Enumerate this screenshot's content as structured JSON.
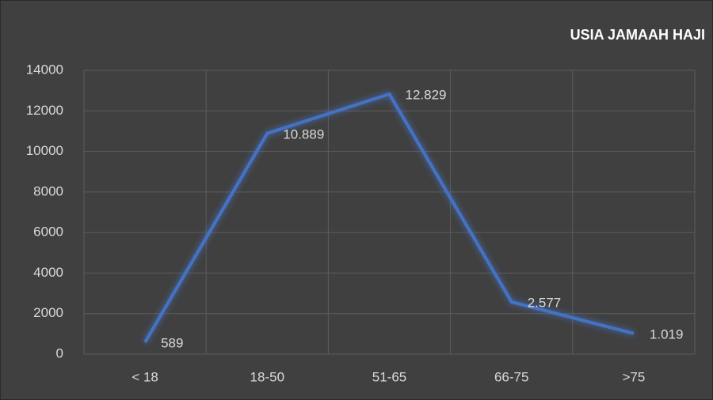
{
  "chart_data": {
    "type": "line",
    "title": "USIA JAMAAH HAJI",
    "categories": [
      "< 18",
      "18-50",
      "51-65",
      "66-75",
      ">75"
    ],
    "series": [
      {
        "name": "USIA JAMAAH HAJI",
        "color": "#4472c4",
        "values": [
          589,
          10889,
          12829,
          2577,
          1019
        ],
        "value_labels": [
          "589",
          "10.889",
          "12.829",
          "2.577",
          "1.019"
        ]
      }
    ],
    "ylim": [
      0,
      14000
    ],
    "yticks": [
      0,
      2000,
      4000,
      6000,
      8000,
      10000,
      12000,
      14000
    ],
    "grid": true
  }
}
